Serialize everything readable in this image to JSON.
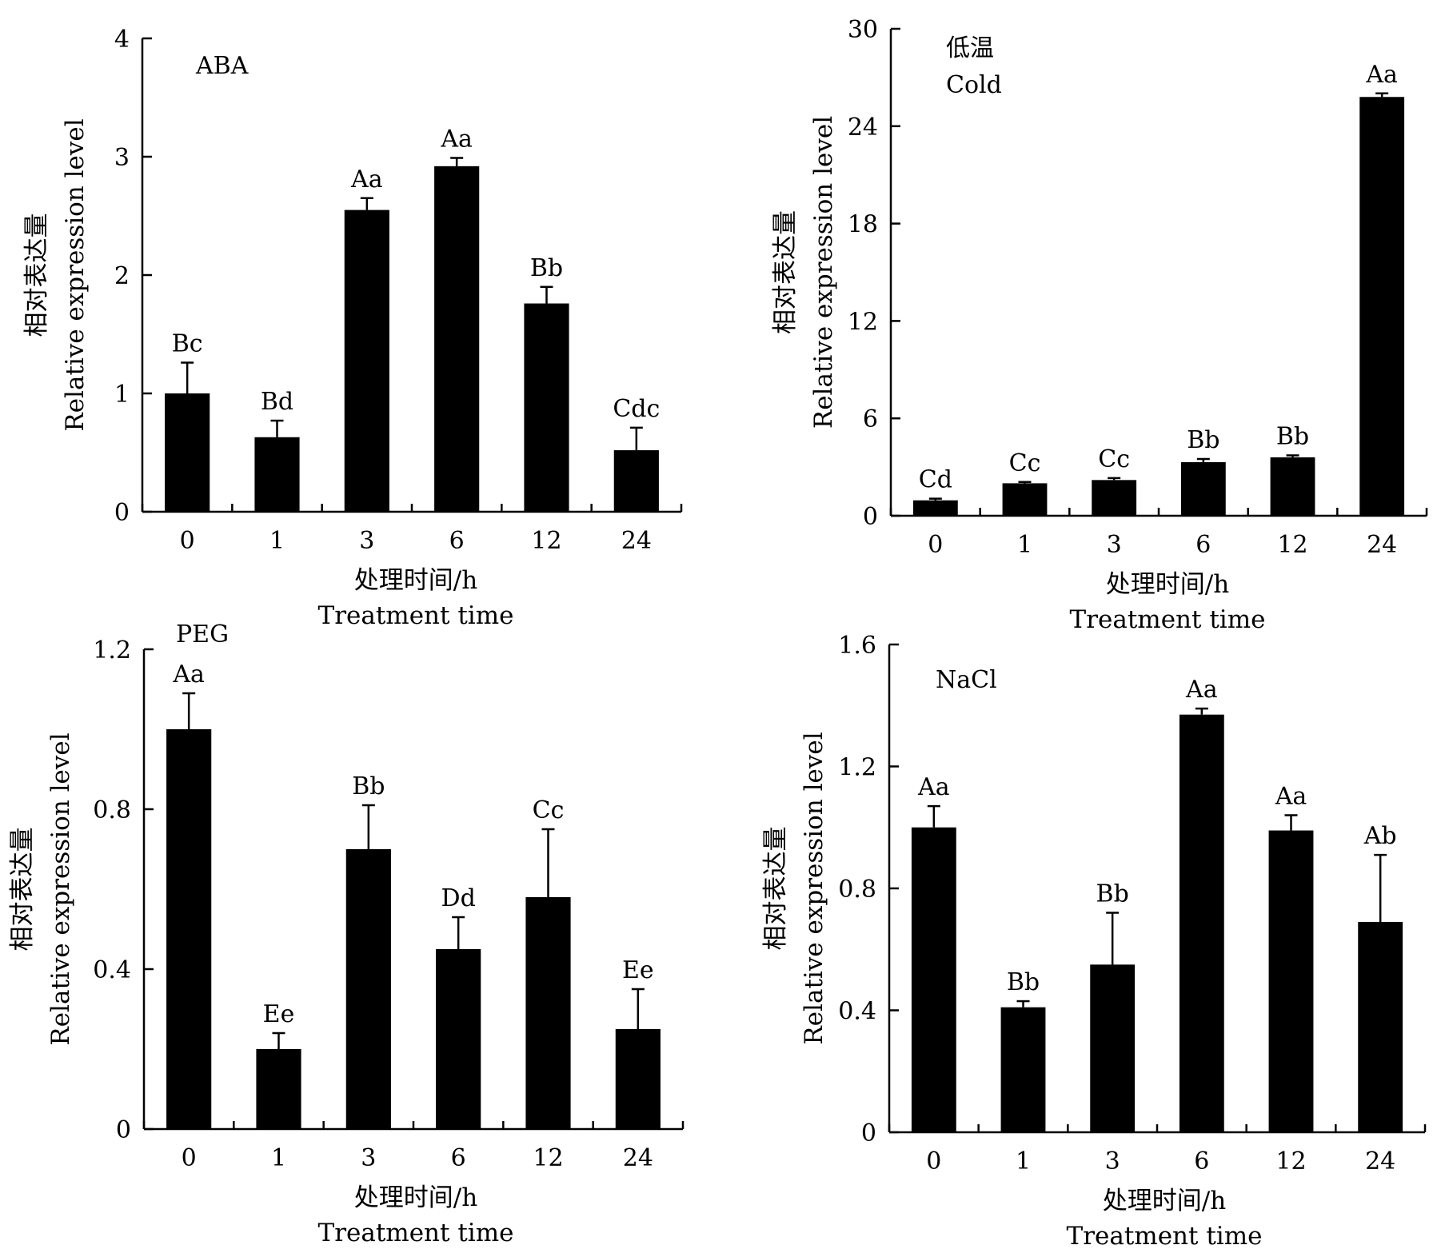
{
  "axis_text": {
    "ylabel_cn": "相对表达量",
    "ylabel_en": "Relative expression level",
    "xlabel_cn": "处理时间/h",
    "xlabel_en": "Treatment time"
  },
  "colors": {
    "bar": "#000000",
    "axis": "#000000"
  },
  "chart_data": [
    {
      "type": "bar",
      "label_lines": [
        "ABA"
      ],
      "categories": [
        "0",
        "1",
        "3",
        "6",
        "12",
        "24"
      ],
      "values": [
        1.0,
        0.63,
        2.55,
        2.92,
        1.76,
        0.52
      ],
      "errors": [
        0.26,
        0.14,
        0.1,
        0.07,
        0.14,
        0.19
      ],
      "letters": [
        "Bc",
        "Bd",
        "Aa",
        "Aa",
        "Bb",
        "Cdc"
      ],
      "ylim": [
        0,
        4
      ],
      "yticks": [
        0,
        1,
        2,
        3,
        4
      ],
      "ytick_labels": [
        "0",
        "1",
        "2",
        "3",
        "4"
      ],
      "xlabel": "处理时间/h Treatment time",
      "ylabel": "相对表达量 Relative expression level"
    },
    {
      "type": "bar",
      "label_lines": [
        "低温",
        "Cold"
      ],
      "categories": [
        "0",
        "1",
        "3",
        "6",
        "12",
        "24"
      ],
      "values": [
        0.95,
        2.0,
        2.2,
        3.3,
        3.6,
        25.8
      ],
      "errors": [
        0.1,
        0.08,
        0.12,
        0.2,
        0.12,
        0.22
      ],
      "letters": [
        "Cd",
        "Cc",
        "Cc",
        "Bb",
        "Bb",
        "Aa"
      ],
      "ylim": [
        0,
        30
      ],
      "yticks": [
        0,
        6,
        12,
        18,
        24,
        30
      ],
      "ytick_labels": [
        "0",
        "6",
        "12",
        "18",
        "24",
        "30"
      ],
      "xlabel": "处理时间/h Treatment time",
      "ylabel": "相对表达量 Relative expression level"
    },
    {
      "type": "bar",
      "label_lines": [
        "PEG"
      ],
      "categories": [
        "0",
        "1",
        "3",
        "6",
        "12",
        "24"
      ],
      "values": [
        1.0,
        0.2,
        0.7,
        0.45,
        0.58,
        0.25
      ],
      "errors": [
        0.09,
        0.04,
        0.11,
        0.08,
        0.17,
        0.1
      ],
      "letters": [
        "Aa",
        "Ee",
        "Bb",
        "Dd",
        "Cc",
        "Ee"
      ],
      "ylim": [
        0,
        1.2
      ],
      "yticks": [
        0,
        0.4,
        0.8,
        1.2
      ],
      "ytick_labels": [
        "0",
        "0.4",
        "0.8",
        "1.2"
      ],
      "xlabel": "处理时间/h Treatment time",
      "ylabel": "相对表达量 Relative expression level"
    },
    {
      "type": "bar",
      "label_lines": [
        "NaCl"
      ],
      "categories": [
        "0",
        "1",
        "3",
        "6",
        "12",
        "24"
      ],
      "values": [
        1.0,
        0.41,
        0.55,
        1.37,
        0.99,
        0.69
      ],
      "errors": [
        0.07,
        0.02,
        0.17,
        0.02,
        0.05,
        0.22
      ],
      "letters": [
        "Aa",
        "Bb",
        "Bb",
        "Aa",
        "Aa",
        "Ab"
      ],
      "ylim": [
        0,
        1.6
      ],
      "yticks": [
        0,
        0.4,
        0.8,
        1.2,
        1.6
      ],
      "ytick_labels": [
        "0",
        "0.4",
        "0.8",
        "1.2",
        "1.6"
      ],
      "xlabel": "处理时间/h Treatment time",
      "ylabel": "相对表达量 Relative expression level"
    }
  ]
}
